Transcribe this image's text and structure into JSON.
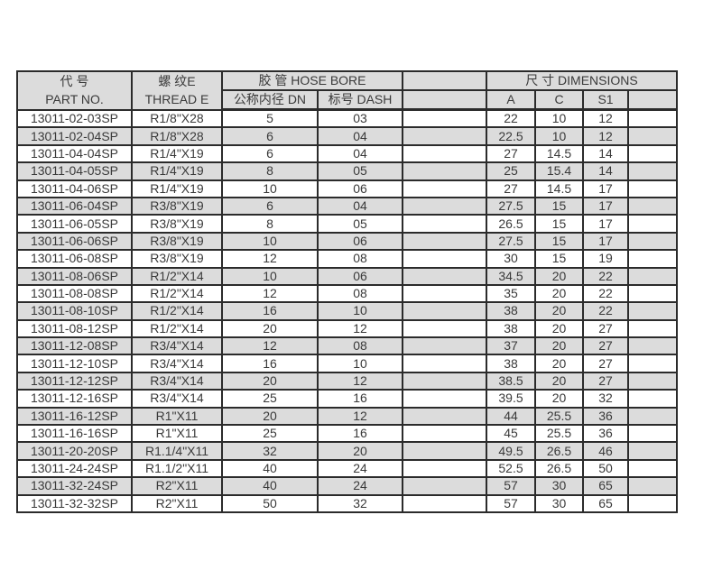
{
  "page": {
    "background_color": "#ffffff",
    "grid_color": "#2b2b2b",
    "zebra_color": "#dcdcdc",
    "text_color": "#3a3a3a"
  },
  "table": {
    "header": {
      "part_no_zh": "代 号",
      "part_no_en": "PART NO.",
      "thread_zh": "螺 纹E",
      "thread_en": "THREAD E",
      "hose_bore": "胶 管 HOSE BORE",
      "dn": "公称内径 DN",
      "dash": "标号 DASH",
      "dimensions": "尺 寸 DIMENSIONS",
      "a": "A",
      "c": "C",
      "s1": "S1"
    },
    "rows": [
      {
        "part_no": "13011-02-03SP",
        "thread": "R1/8\"X28",
        "dn": "5",
        "dash": "03",
        "a": "22",
        "c": "10",
        "s1": "12"
      },
      {
        "part_no": "13011-02-04SP",
        "thread": "R1/8\"X28",
        "dn": "6",
        "dash": "04",
        "a": "22.5",
        "c": "10",
        "s1": "12"
      },
      {
        "part_no": "13011-04-04SP",
        "thread": "R1/4\"X19",
        "dn": "6",
        "dash": "04",
        "a": "27",
        "c": "14.5",
        "s1": "14"
      },
      {
        "part_no": "13011-04-05SP",
        "thread": "R1/4\"X19",
        "dn": "8",
        "dash": "05",
        "a": "25",
        "c": "15.4",
        "s1": "14"
      },
      {
        "part_no": "13011-04-06SP",
        "thread": "R1/4\"X19",
        "dn": "10",
        "dash": "06",
        "a": "27",
        "c": "14.5",
        "s1": "17"
      },
      {
        "part_no": "13011-06-04SP",
        "thread": "R3/8\"X19",
        "dn": "6",
        "dash": "04",
        "a": "27.5",
        "c": "15",
        "s1": "17"
      },
      {
        "part_no": "13011-06-05SP",
        "thread": "R3/8\"X19",
        "dn": "8",
        "dash": "05",
        "a": "26.5",
        "c": "15",
        "s1": "17"
      },
      {
        "part_no": "13011-06-06SP",
        "thread": "R3/8\"X19",
        "dn": "10",
        "dash": "06",
        "a": "27.5",
        "c": "15",
        "s1": "17"
      },
      {
        "part_no": "13011-06-08SP",
        "thread": "R3/8\"X19",
        "dn": "12",
        "dash": "08",
        "a": "30",
        "c": "15",
        "s1": "19"
      },
      {
        "part_no": "13011-08-06SP",
        "thread": "R1/2\"X14",
        "dn": "10",
        "dash": "06",
        "a": "34.5",
        "c": "20",
        "s1": "22"
      },
      {
        "part_no": "13011-08-08SP",
        "thread": "R1/2\"X14",
        "dn": "12",
        "dash": "08",
        "a": "35",
        "c": "20",
        "s1": "22"
      },
      {
        "part_no": "13011-08-10SP",
        "thread": "R1/2\"X14",
        "dn": "16",
        "dash": "10",
        "a": "38",
        "c": "20",
        "s1": "22"
      },
      {
        "part_no": "13011-08-12SP",
        "thread": "R1/2\"X14",
        "dn": "20",
        "dash": "12",
        "a": "38",
        "c": "20",
        "s1": "27"
      },
      {
        "part_no": "13011-12-08SP",
        "thread": "R3/4\"X14",
        "dn": "12",
        "dash": "08",
        "a": "37",
        "c": "20",
        "s1": "27"
      },
      {
        "part_no": "13011-12-10SP",
        "thread": "R3/4\"X14",
        "dn": "16",
        "dash": "10",
        "a": "38",
        "c": "20",
        "s1": "27"
      },
      {
        "part_no": "13011-12-12SP",
        "thread": "R3/4\"X14",
        "dn": "20",
        "dash": "12",
        "a": "38.5",
        "c": "20",
        "s1": "27"
      },
      {
        "part_no": "13011-12-16SP",
        "thread": "R3/4\"X14",
        "dn": "25",
        "dash": "16",
        "a": "39.5",
        "c": "20",
        "s1": "32"
      },
      {
        "part_no": "13011-16-12SP",
        "thread": "R1\"X11",
        "dn": "20",
        "dash": "12",
        "a": "44",
        "c": "25.5",
        "s1": "36"
      },
      {
        "part_no": "13011-16-16SP",
        "thread": "R1\"X11",
        "dn": "25",
        "dash": "16",
        "a": "45",
        "c": "25.5",
        "s1": "36"
      },
      {
        "part_no": "13011-20-20SP",
        "thread": "R1.1/4\"X11",
        "dn": "32",
        "dash": "20",
        "a": "49.5",
        "c": "26.5",
        "s1": "46"
      },
      {
        "part_no": "13011-24-24SP",
        "thread": "R1.1/2\"X11",
        "dn": "40",
        "dash": "24",
        "a": "52.5",
        "c": "26.5",
        "s1": "50"
      },
      {
        "part_no": "13011-32-24SP",
        "thread": "R2\"X11",
        "dn": "40",
        "dash": "24",
        "a": "57",
        "c": "30",
        "s1": "65"
      },
      {
        "part_no": "13011-32-32SP",
        "thread": "R2\"X11",
        "dn": "50",
        "dash": "32",
        "a": "57",
        "c": "30",
        "s1": "65"
      }
    ]
  }
}
